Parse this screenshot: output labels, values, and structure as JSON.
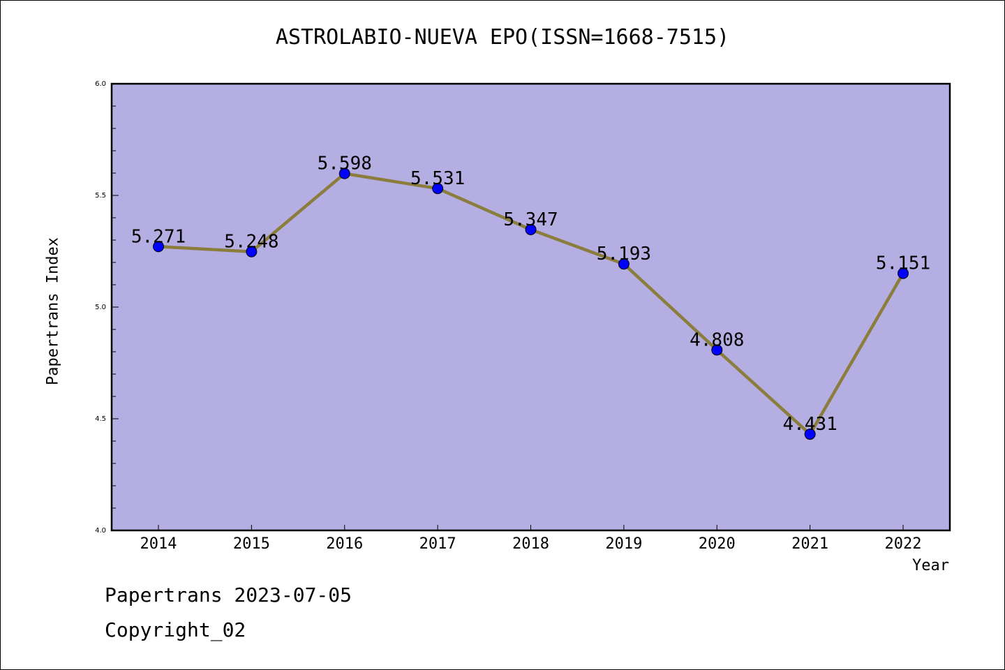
{
  "chart_data": {
    "type": "line",
    "title": "ASTROLABIO-NUEVA EPO(ISSN=1668-7515)",
    "xlabel": "Year",
    "ylabel": "Papertrans Index",
    "categories": [
      "2014",
      "2015",
      "2016",
      "2017",
      "2018",
      "2019",
      "2020",
      "2021",
      "2022"
    ],
    "series": [
      {
        "values": [
          5.271,
          5.248,
          5.598,
          5.531,
          5.347,
          5.193,
          4.808,
          4.431,
          5.151
        ],
        "labels": [
          "5.271",
          "5.248",
          "5.598",
          "5.531",
          "5.347",
          "5.193",
          "4.808",
          "4.431",
          "5.151"
        ]
      }
    ],
    "ylim": [
      4.0,
      6.0
    ],
    "yticks": [
      "4.0",
      "4.5",
      "5.0",
      "5.5",
      "6.0"
    ],
    "grid": false,
    "colors": {
      "plot_background": "#b4aee2",
      "line": "#8b7d3c",
      "marker": "#0000ff"
    }
  },
  "footer": {
    "date_line": "Papertrans 2023-07-05",
    "copyright": "Copyright_02"
  }
}
